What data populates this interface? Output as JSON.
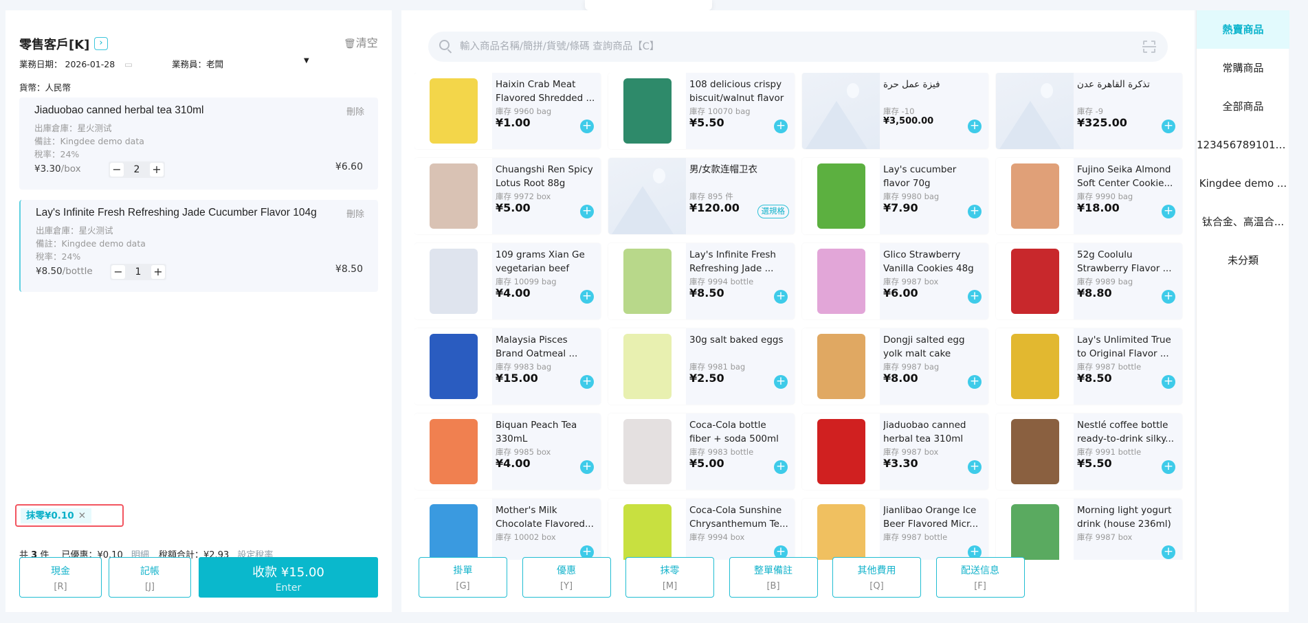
{
  "colors": {
    "accent": "#0ab8cc",
    "highlight_box": "#f2545f",
    "plus": "#3ecbe9"
  },
  "customer": {
    "title": "零售客戶[K]",
    "arrow_icon": "chevron-right-icon",
    "clear_label": "清空",
    "date_label": "業務日期：",
    "date_value": "2026-01-28",
    "staff_label": "業務員：",
    "staff_value": "老闆",
    "currency_label": "貨幣：",
    "currency_value": "人民幣"
  },
  "cart": [
    {
      "name": "Jiaduobao canned herbal tea 310ml",
      "delete": "刪除",
      "warehouse": "出庫倉庫：星火测试",
      "note": "備註：Kingdee demo data",
      "tax": "稅率：24%",
      "price": "¥3.30",
      "unit": "/box",
      "qty": "2",
      "total": "¥6.60"
    },
    {
      "name": "Lay's Infinite Fresh Refreshing Jade Cucumber Flavor 104g",
      "delete": "刪除",
      "warehouse": "出庫倉庫：星火测试",
      "note": "備註：Kingdee demo data",
      "tax": "稅率：24%",
      "price": "¥8.50",
      "unit": "/bottle",
      "qty": "1",
      "total": "¥8.50"
    }
  ],
  "rounding_tag": "抹零¥0.10",
  "summary": {
    "count_prefix": "共",
    "count": "3",
    "count_suffix": "件",
    "discount": "已優惠：¥0.10",
    "detail_link": "明細",
    "tax_total": "稅額合計：¥2.93",
    "set_tax_link": "設定稅率"
  },
  "pay_buttons": {
    "cash": "現金",
    "cash_key": "[R]",
    "credit": "記帳",
    "credit_key": "[J]",
    "pay": "收款 ¥15.00",
    "pay_key": "Enter"
  },
  "search": {
    "placeholder": "輸入商品名稱/簡拼/貨號/條碼 查詢商品【C】"
  },
  "products": [
    {
      "name": "Haixin Crab Meat Flavored Shredded ...",
      "stock": "庫存 9960 bag",
      "price": "¥1.00",
      "img": "#f3d64a"
    },
    {
      "name": "108 delicious crispy biscuit/walnut flavor",
      "stock": "庫存 10070 bag",
      "price": "¥5.50",
      "img": "#2e8a6a"
    },
    {
      "name": "فيزة عمل حرة",
      "stock": "庫存 -10",
      "price": "¥3,500.00",
      "img": ""
    },
    {
      "name": "تذكرة القاهرة عدن",
      "stock": "庫存 -9",
      "price": "¥325.00",
      "img": ""
    },
    {
      "name": "Chuangshi Ren Spicy Lotus Root 88g",
      "stock": "庫存 9972 box",
      "price": "¥5.00",
      "img": "#d9c2b4"
    },
    {
      "name": "男/女款连帽卫衣",
      "stock": "庫存 895 件",
      "price": "¥120.00",
      "img": "",
      "spec": "選規格"
    },
    {
      "name": "Lay's cucumber flavor 70g",
      "stock": "庫存 9980 bag",
      "price": "¥7.90",
      "img": "#5cb040"
    },
    {
      "name": "Fujino Seika Almond Soft Center Cookie...",
      "stock": "庫存 9990 bag",
      "price": "¥18.00",
      "img": "#e0a078"
    },
    {
      "name": "109 grams Xian Ge vegetarian beef",
      "stock": "庫存 10099 bag",
      "price": "¥4.00",
      "img": "#dfe4ee"
    },
    {
      "name": "Lay's Infinite Fresh Refreshing Jade ...",
      "stock": "庫存 9994 bottle",
      "price": "¥8.50",
      "img": "#b8d88a"
    },
    {
      "name": "Glico Strawberry Vanilla Cookies 48g",
      "stock": "庫存 9987 box",
      "price": "¥6.00",
      "img": "#e2a6d8"
    },
    {
      "name": "52g Coolulu Strawberry Flavor ...",
      "stock": "庫存 9989 bag",
      "price": "¥8.80",
      "img": "#c8282c"
    },
    {
      "name": "Malaysia Pisces Brand Oatmeal ...",
      "stock": "庫存 9983 bag",
      "price": "¥15.00",
      "img": "#2a5cc0"
    },
    {
      "name": "30g salt baked eggs",
      "stock": "庫存 9981 bag",
      "price": "¥2.50",
      "img": "#e8f0b0"
    },
    {
      "name": "Dongji salted egg yolk malt cake",
      "stock": "庫存 9987 bag",
      "price": "¥8.00",
      "img": "#e0a862"
    },
    {
      "name": "Lay's Unlimited True to Original Flavor ...",
      "stock": "庫存 9987 bottle",
      "price": "¥8.50",
      "img": "#e2b830"
    },
    {
      "name": "Biquan Peach Tea 330mL",
      "stock": "庫存 9985 box",
      "price": "¥4.00",
      "img": "#f08050"
    },
    {
      "name": "Coca-Cola bottle fiber + soda 500ml",
      "stock": "庫存 9983 bottle",
      "price": "¥5.00",
      "img": "#e4e0e0"
    },
    {
      "name": "Jiaduobao canned herbal tea 310ml",
      "stock": "庫存 9987 box",
      "price": "¥3.30",
      "img": "#d02020"
    },
    {
      "name": "Nestlé coffee bottle ready-to-drink silky...",
      "stock": "庫存 9991 bottle",
      "price": "¥5.50",
      "img": "#8a6040"
    },
    {
      "name": "Mother's Milk Chocolate Flavored...",
      "stock": "庫存 10002 box",
      "img": "#3a9ae0"
    },
    {
      "name": "Coca-Cola Sunshine Chrysanthemum Te...",
      "stock": "庫存 9994 box",
      "img": "#c8e040"
    },
    {
      "name": "Jianlibao Orange Ice Beer Flavored Micr...",
      "stock": "庫存 9987 bottle",
      "img": "#f0c060"
    },
    {
      "name": "Morning light yogurt drink (house 236ml)",
      "stock": "庫存 9987 box",
      "img": "#5aaa60"
    }
  ],
  "actions": [
    {
      "label": "掛單",
      "key": "[G]"
    },
    {
      "label": "優惠",
      "key": "[Y]"
    },
    {
      "label": "抹零",
      "key": "[M]"
    },
    {
      "label": "整單備註",
      "key": "[B]"
    },
    {
      "label": "其他費用",
      "key": "[Q]"
    },
    {
      "label": "配送信息",
      "key": "[F]"
    }
  ],
  "categories": [
    {
      "label": "熱賣商品",
      "active": true
    },
    {
      "label": "常購商品"
    },
    {
      "label": "全部商品"
    },
    {
      "label": "1234567891012..."
    },
    {
      "label": "Kingdee demo ..."
    },
    {
      "label": "钛合金、高温合..."
    },
    {
      "label": "未分類"
    }
  ]
}
